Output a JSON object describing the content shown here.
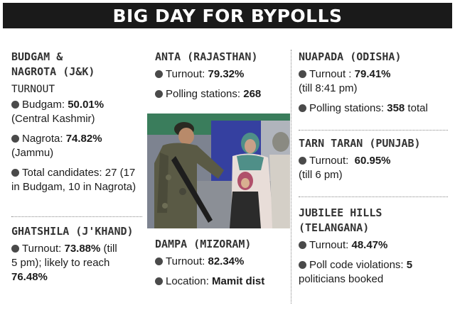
{
  "title": "BIG DAY FOR BYPOLLS",
  "budgam": {
    "heading_1": "BUDGAM &",
    "heading_2": "NAGROTA (J&K)",
    "subhead": "TURNOUT",
    "item1_label": "Budgam: ",
    "item1_value": "50.01%",
    "item1_note": "(Central Kashmir)",
    "item2_label": "Nagrota: ",
    "item2_value": "74.82%",
    "item2_note": "(Jammu)",
    "item3_text_1": "Total candidates: 27 (17",
    "item3_text_2": "in Budgam, 10 in Nagrota)"
  },
  "ghatshila": {
    "heading": "GHATSHILA (J'KHAND)",
    "item_label": "Turnout: ",
    "item_value": "73.88%",
    "item_text_1": " (till",
    "item_text_2": "5 pm); likely to reach",
    "item_value_2": "76.48%"
  },
  "anta": {
    "heading": "ANTA (RAJASTHAN)",
    "item1_label": "Turnout: ",
    "item1_value": "79.32%",
    "item2_label": "Polling stations: ",
    "item2_value": "268"
  },
  "dampa": {
    "heading": "DAMPA (MIZORAM)",
    "item1_label": "Turnout: ",
    "item1_value": "82.34%",
    "item2_label": "Location: ",
    "item2_value": "Mamit dist"
  },
  "nuapada": {
    "heading": "NUAPADA (ODISHA)",
    "item1_label": "Turnout : ",
    "item1_value": "79.41%",
    "item1_note": "(till 8:41 pm)",
    "item2_label": "Polling stations: ",
    "item2_value": "358",
    "item2_suffix": " total"
  },
  "tarn_taran": {
    "heading": "TARN TARAN (PUNJAB)",
    "item_label": "Turnout:  ",
    "item_value": "60.95%",
    "item_note": "(till 6 pm)"
  },
  "jubilee": {
    "heading_1": "JUBILEE HILLS",
    "heading_2": "(TELANGANA)",
    "item1_label": "Turnout: ",
    "item1_value": "48.47%",
    "item2_label": "Poll code violations: ",
    "item2_value": "5",
    "item2_note": "politicians booked"
  }
}
